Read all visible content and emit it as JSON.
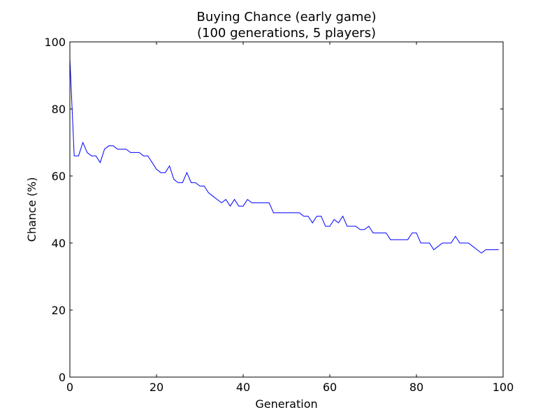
{
  "chart_data": {
    "type": "line",
    "title_lines": [
      "Buying Chance (early game)",
      "(100 generations, 5 players)"
    ],
    "xlabel": "Generation",
    "ylabel": "Chance (%)",
    "xlim": [
      0,
      100
    ],
    "ylim": [
      0,
      100
    ],
    "x_ticks": [
      0,
      20,
      40,
      60,
      80,
      100
    ],
    "y_ticks": [
      0,
      20,
      40,
      60,
      80,
      100
    ],
    "grid": false,
    "series": [
      {
        "color": "#0000ff",
        "x": [
          0,
          1,
          2,
          3,
          4,
          5,
          6,
          7,
          8,
          9,
          10,
          11,
          12,
          13,
          14,
          15,
          16,
          17,
          18,
          19,
          20,
          21,
          22,
          23,
          24,
          25,
          26,
          27,
          28,
          29,
          30,
          31,
          32,
          33,
          34,
          35,
          36,
          37,
          38,
          39,
          40,
          41,
          42,
          43,
          44,
          45,
          46,
          47,
          48,
          49,
          50,
          51,
          52,
          53,
          54,
          55,
          56,
          57,
          58,
          59,
          60,
          61,
          62,
          63,
          64,
          65,
          66,
          67,
          68,
          69,
          70,
          71,
          72,
          73,
          74,
          75,
          76,
          77,
          78,
          79,
          80,
          81,
          82,
          83,
          84,
          85,
          86,
          87,
          88,
          89,
          90,
          91,
          92,
          93,
          94,
          95,
          96,
          97,
          98,
          99
        ],
        "y": [
          95,
          66,
          66,
          70,
          67,
          66,
          66,
          64,
          68,
          69,
          69,
          68,
          68,
          68,
          67,
          67,
          67,
          66,
          66,
          64,
          62,
          61,
          61,
          63,
          59,
          58,
          58,
          61,
          58,
          58,
          57,
          57,
          55,
          54,
          53,
          52,
          53,
          51,
          53,
          51,
          51,
          53,
          52,
          52,
          52,
          52,
          52,
          49,
          49,
          49,
          49,
          49,
          49,
          49,
          48,
          48,
          46,
          48,
          48,
          45,
          45,
          47,
          46,
          48,
          45,
          45,
          45,
          44,
          44,
          45,
          43,
          43,
          43,
          43,
          41,
          41,
          41,
          41,
          41,
          43,
          43,
          40,
          40,
          40,
          38,
          39,
          40,
          40,
          40,
          42,
          40,
          40,
          40,
          39,
          38,
          37,
          38,
          38,
          38,
          38
        ]
      }
    ]
  }
}
